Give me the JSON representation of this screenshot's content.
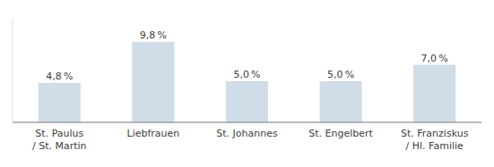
{
  "chart_data": {
    "type": "bar",
    "categories": [
      "St. Paulus\n/ St. Martin",
      "Liebfrauen",
      "St. Johannes",
      "St. Engelbert",
      "St. Franziskus\n/ Hl. Familie"
    ],
    "values": [
      4.8,
      9.8,
      5.0,
      5.0,
      7.0
    ],
    "value_labels": [
      "4,8 %",
      "9,8 %",
      "5,0 %",
      "5,0 %",
      "7,0 %"
    ],
    "data_labels": true,
    "color": "#d0dce8",
    "ylim": [
      0,
      12.5
    ],
    "tick_labels": "x"
  }
}
